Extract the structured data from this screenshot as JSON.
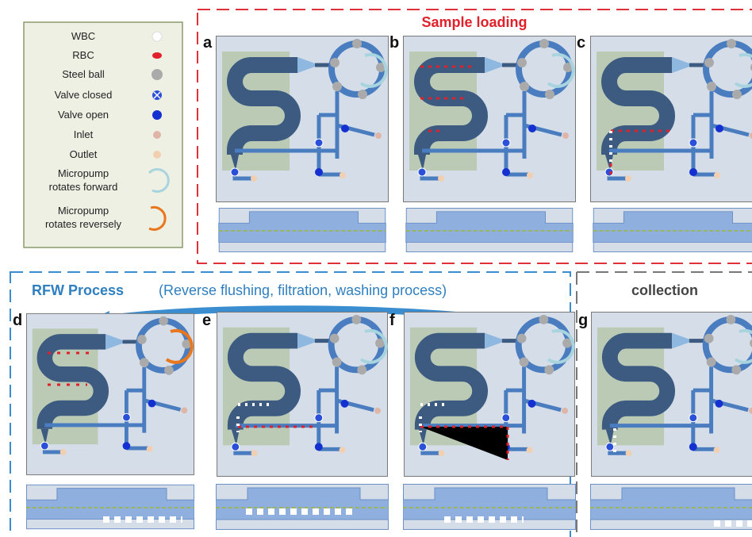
{
  "legend": {
    "items": [
      {
        "label": [
          "WBC"
        ]
      },
      {
        "label": [
          "RBC"
        ]
      },
      {
        "label": [
          "Steel ball"
        ]
      },
      {
        "label": [
          "Valve closed"
        ]
      },
      {
        "label": [
          "Valve open"
        ]
      },
      {
        "label": [
          "Inlet"
        ]
      },
      {
        "label": [
          "Outlet"
        ]
      },
      {
        "label": [
          "Micropump",
          "rotates forward"
        ]
      },
      {
        "label": [
          "Micropump",
          "rotates reversely"
        ]
      }
    ]
  },
  "sections": {
    "sample_loading": {
      "title": "Sample loading"
    },
    "rfw": {
      "title": "RFW Process",
      "subtitle": "(Reverse flushing, filtration, washing process)"
    },
    "collection": {
      "title": "collection"
    }
  },
  "panels": [
    {
      "letter": "a"
    },
    {
      "letter": "b"
    },
    {
      "letter": "c"
    },
    {
      "letter": "d"
    },
    {
      "letter": "e"
    },
    {
      "letter": "f"
    },
    {
      "letter": "g"
    }
  ]
}
